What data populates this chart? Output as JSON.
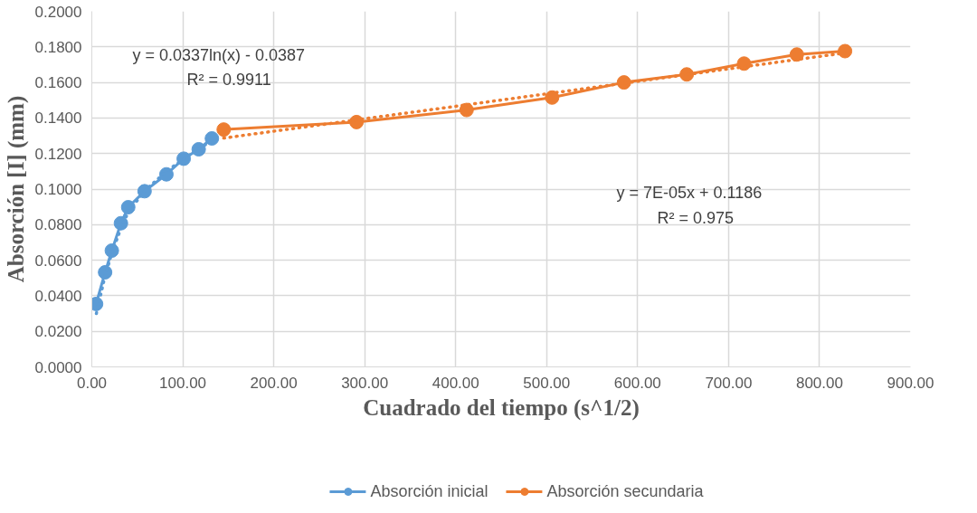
{
  "chart_data": {
    "type": "line",
    "xlabel": "Cuadrado del tiempo (s^1/2)",
    "ylabel": "Absorción [I] (mm)",
    "xlim": [
      0,
      900
    ],
    "ylim": [
      0,
      0.2
    ],
    "xticks": [
      {
        "value": 0,
        "label": "0.00"
      },
      {
        "value": 100,
        "label": "100.00"
      },
      {
        "value": 200,
        "label": "200.00"
      },
      {
        "value": 300,
        "label": "300.00"
      },
      {
        "value": 400,
        "label": "400.00"
      },
      {
        "value": 500,
        "label": "500.00"
      },
      {
        "value": 600,
        "label": "600.00"
      },
      {
        "value": 700,
        "label": "700.00"
      },
      {
        "value": 800,
        "label": "800.00"
      },
      {
        "value": 900,
        "label": "900.00"
      }
    ],
    "yticks": [
      {
        "value": 0,
        "label": "0.0000"
      },
      {
        "value": 0.02,
        "label": "0.0200"
      },
      {
        "value": 0.04,
        "label": "0.0400"
      },
      {
        "value": 0.06,
        "label": "0.0600"
      },
      {
        "value": 0.08,
        "label": "0.0800"
      },
      {
        "value": 0.1,
        "label": "0.1000"
      },
      {
        "value": 0.12,
        "label": "0.1200"
      },
      {
        "value": 0.14,
        "label": "0.1400"
      },
      {
        "value": 0.16,
        "label": "0.1600"
      },
      {
        "value": 0.18,
        "label": "0.1800"
      },
      {
        "value": 0.2,
        "label": "0.2000"
      }
    ],
    "grid": true,
    "legend": "bottom",
    "marker": "circle",
    "line_style": "solid",
    "series": [
      {
        "name": "Absorción inicial",
        "color": "#5b9bd5",
        "x": [
          4.7,
          14.6,
          22,
          32,
          40,
          58,
          82,
          101,
          117.5,
          132
        ],
        "values": [
          0.0354,
          0.0532,
          0.0654,
          0.0808,
          0.0898,
          0.0988,
          0.1083,
          0.1171,
          0.1224,
          0.1285
        ]
      },
      {
        "name": "Absorción secundaria",
        "color": "#ed7d31",
        "x": [
          145,
          291,
          412,
          506,
          585,
          654,
          717,
          775,
          828
        ],
        "values": [
          0.1335,
          0.1377,
          0.1445,
          0.1515,
          0.16,
          0.1645,
          0.1706,
          0.1757,
          0.1776
        ]
      },
      {
        "color": "#5b9bd5",
        "line_style": "dotted",
        "marker": "none",
        "x": [
          5,
          14,
          22,
          32,
          40,
          58,
          82,
          101,
          118,
          132
        ],
        "values": [
          0.03,
          0.05,
          0.064,
          0.078,
          0.087,
          0.099,
          0.11,
          0.117,
          0.123,
          0.127
        ]
      },
      {
        "color": "#ed7d31",
        "line_style": "dotted",
        "marker": "none",
        "x": [
          145,
          828
        ],
        "values": [
          0.1287,
          0.1766
        ]
      }
    ],
    "annotations": [
      "y = 0.0337ln(x) - 0.0387",
      "R² = 0.9911",
      "y = 7E-05x + 0.1186",
      "R² = 0.975"
    ]
  }
}
